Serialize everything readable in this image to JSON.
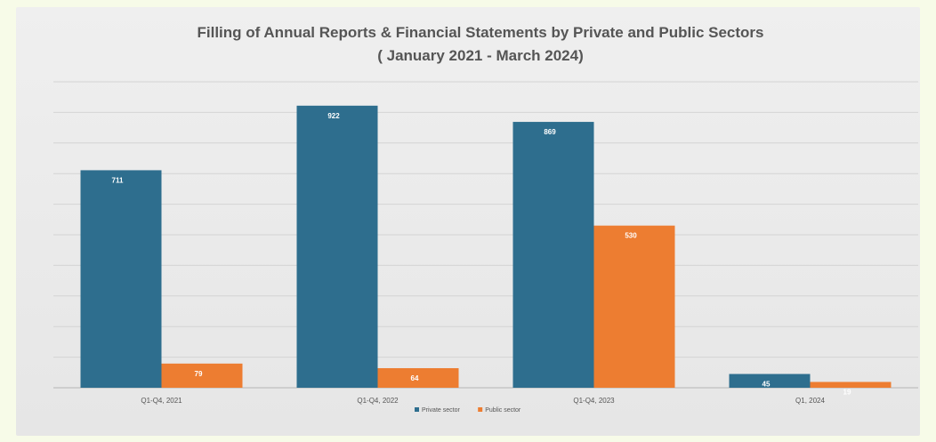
{
  "chart_data": {
    "type": "bar",
    "title": "Filling of Annual Reports & Financial Statements by Private and Public Sectors",
    "subtitle": "( January 2021 - March 2024)",
    "categories": [
      "Q1-Q4, 2021",
      "Q1-Q4, 2022",
      "Q1-Q4, 2023",
      "Q1, 2024"
    ],
    "series": [
      {
        "name": "Private sector",
        "values": [
          711,
          922,
          869,
          45
        ],
        "color": "#2e6e8e"
      },
      {
        "name": "Public sector",
        "values": [
          79,
          64,
          530,
          19
        ],
        "color": "#ed7d31"
      }
    ],
    "ylim": [
      0,
      1000
    ],
    "grid": true,
    "legend": "bottom"
  }
}
